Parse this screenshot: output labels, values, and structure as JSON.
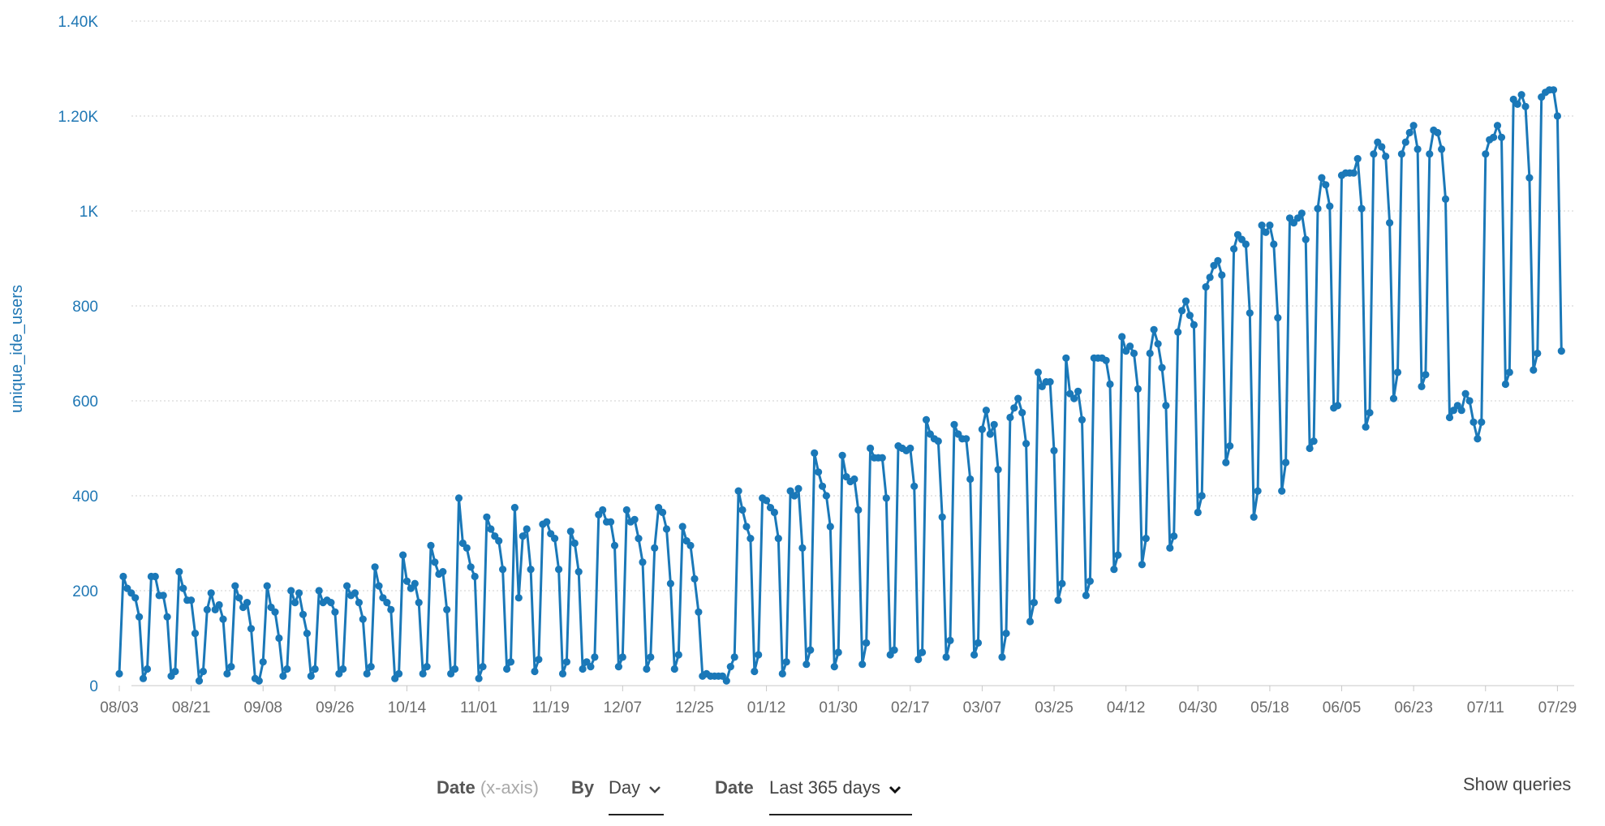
{
  "chart_data": {
    "type": "line",
    "ylabel": "unique_ide_users",
    "xlabel": "",
    "ylim": [
      0,
      1400
    ],
    "y_ticks": [
      0,
      200,
      400,
      600,
      800,
      1000,
      1200,
      1400
    ],
    "y_tick_labels": [
      "0",
      "200",
      "400",
      "600",
      "800",
      "1K",
      "1.20K",
      "1.40K"
    ],
    "x_tick_labels": [
      "08/03",
      "08/21",
      "09/08",
      "09/26",
      "10/14",
      "11/01",
      "11/19",
      "12/07",
      "12/25",
      "01/12",
      "01/30",
      "02/17",
      "03/07",
      "03/25",
      "04/12",
      "04/30",
      "05/18",
      "06/05",
      "06/23",
      "07/11",
      "07/29"
    ],
    "x_tick_step_days": 18,
    "x_start_day": 0,
    "x_end_day": 365,
    "grid": "horizontal dotted",
    "color": "#1a78b8",
    "series": [
      {
        "values": [
          25,
          230,
          205,
          195,
          185,
          145,
          15,
          35,
          230,
          230,
          190,
          190,
          145,
          20,
          30,
          240,
          205,
          180,
          180,
          110,
          10,
          30,
          160,
          195,
          160,
          170,
          140,
          25,
          40,
          210,
          185,
          165,
          175,
          120,
          15,
          10,
          50,
          210,
          165,
          155,
          100,
          20,
          35,
          200,
          175,
          195,
          150,
          110,
          20,
          35,
          200,
          175,
          180,
          175,
          155,
          25,
          35,
          210,
          190,
          195,
          175,
          140,
          25,
          40,
          250,
          210,
          185,
          175,
          160,
          15,
          25,
          275,
          220,
          205,
          215,
          175,
          25,
          40,
          295,
          260,
          235,
          240,
          160,
          25,
          35,
          395,
          300,
          290,
          250,
          230,
          15,
          40,
          355,
          330,
          315,
          305,
          245,
          35,
          50,
          375,
          185,
          315,
          330,
          245,
          30,
          55,
          340,
          345,
          320,
          310,
          245,
          25,
          50,
          325,
          300,
          240,
          35,
          50,
          40,
          60,
          360,
          370,
          345,
          345,
          295,
          40,
          60,
          370,
          345,
          350,
          310,
          260,
          35,
          60,
          290,
          375,
          365,
          330,
          215,
          35,
          65,
          335,
          305,
          295,
          225,
          155,
          20,
          25,
          20,
          20,
          20,
          20,
          10,
          40,
          60,
          410,
          370,
          335,
          310,
          30,
          65,
          395,
          390,
          375,
          365,
          310,
          25,
          50,
          410,
          400,
          415,
          290,
          45,
          75,
          490,
          450,
          420,
          400,
          335,
          40,
          70,
          485,
          440,
          430,
          435,
          370,
          45,
          90,
          500,
          480,
          480,
          480,
          395,
          65,
          75,
          505,
          500,
          495,
          500,
          420,
          55,
          70,
          560,
          530,
          520,
          515,
          355,
          60,
          95,
          550,
          530,
          520,
          520,
          435,
          65,
          90,
          540,
          580,
          530,
          550,
          455,
          60,
          110,
          565,
          585,
          605,
          575,
          510,
          135,
          175,
          660,
          630,
          640,
          640,
          495,
          180,
          215,
          690,
          615,
          605,
          620,
          560,
          190,
          220,
          690,
          690,
          690,
          685,
          635,
          245,
          275,
          735,
          705,
          715,
          700,
          625,
          255,
          310,
          700,
          750,
          720,
          670,
          590,
          290,
          315,
          745,
          790,
          810,
          780,
          760,
          365,
          400,
          840,
          860,
          885,
          895,
          865,
          470,
          505,
          920,
          950,
          940,
          930,
          785,
          355,
          410,
          970,
          955,
          970,
          930,
          775,
          410,
          470,
          985,
          975,
          985,
          995,
          940,
          500,
          515,
          1005,
          1070,
          1055,
          1010,
          585,
          590,
          1075,
          1080,
          1080,
          1080,
          1110,
          1005,
          545,
          575,
          1120,
          1145,
          1135,
          1115,
          975,
          605,
          660,
          1120,
          1145,
          1165,
          1180,
          1130,
          630,
          655,
          1120,
          1170,
          1165,
          1130,
          1025,
          565,
          580,
          590,
          580,
          615,
          600,
          555,
          520,
          555,
          1120,
          1150,
          1155,
          1180,
          1155,
          635,
          660,
          1235,
          1225,
          1245,
          1220,
          1070,
          665,
          700,
          1240,
          1250,
          1255,
          1255,
          1200,
          705
        ]
      }
    ]
  },
  "controls": {
    "date_label": "Date",
    "date_hint": "(x-axis)",
    "by_label": "By",
    "by_value": "Day",
    "date2_label": "Date",
    "date2_value": "Last 365 days",
    "show_queries": "Show queries"
  }
}
